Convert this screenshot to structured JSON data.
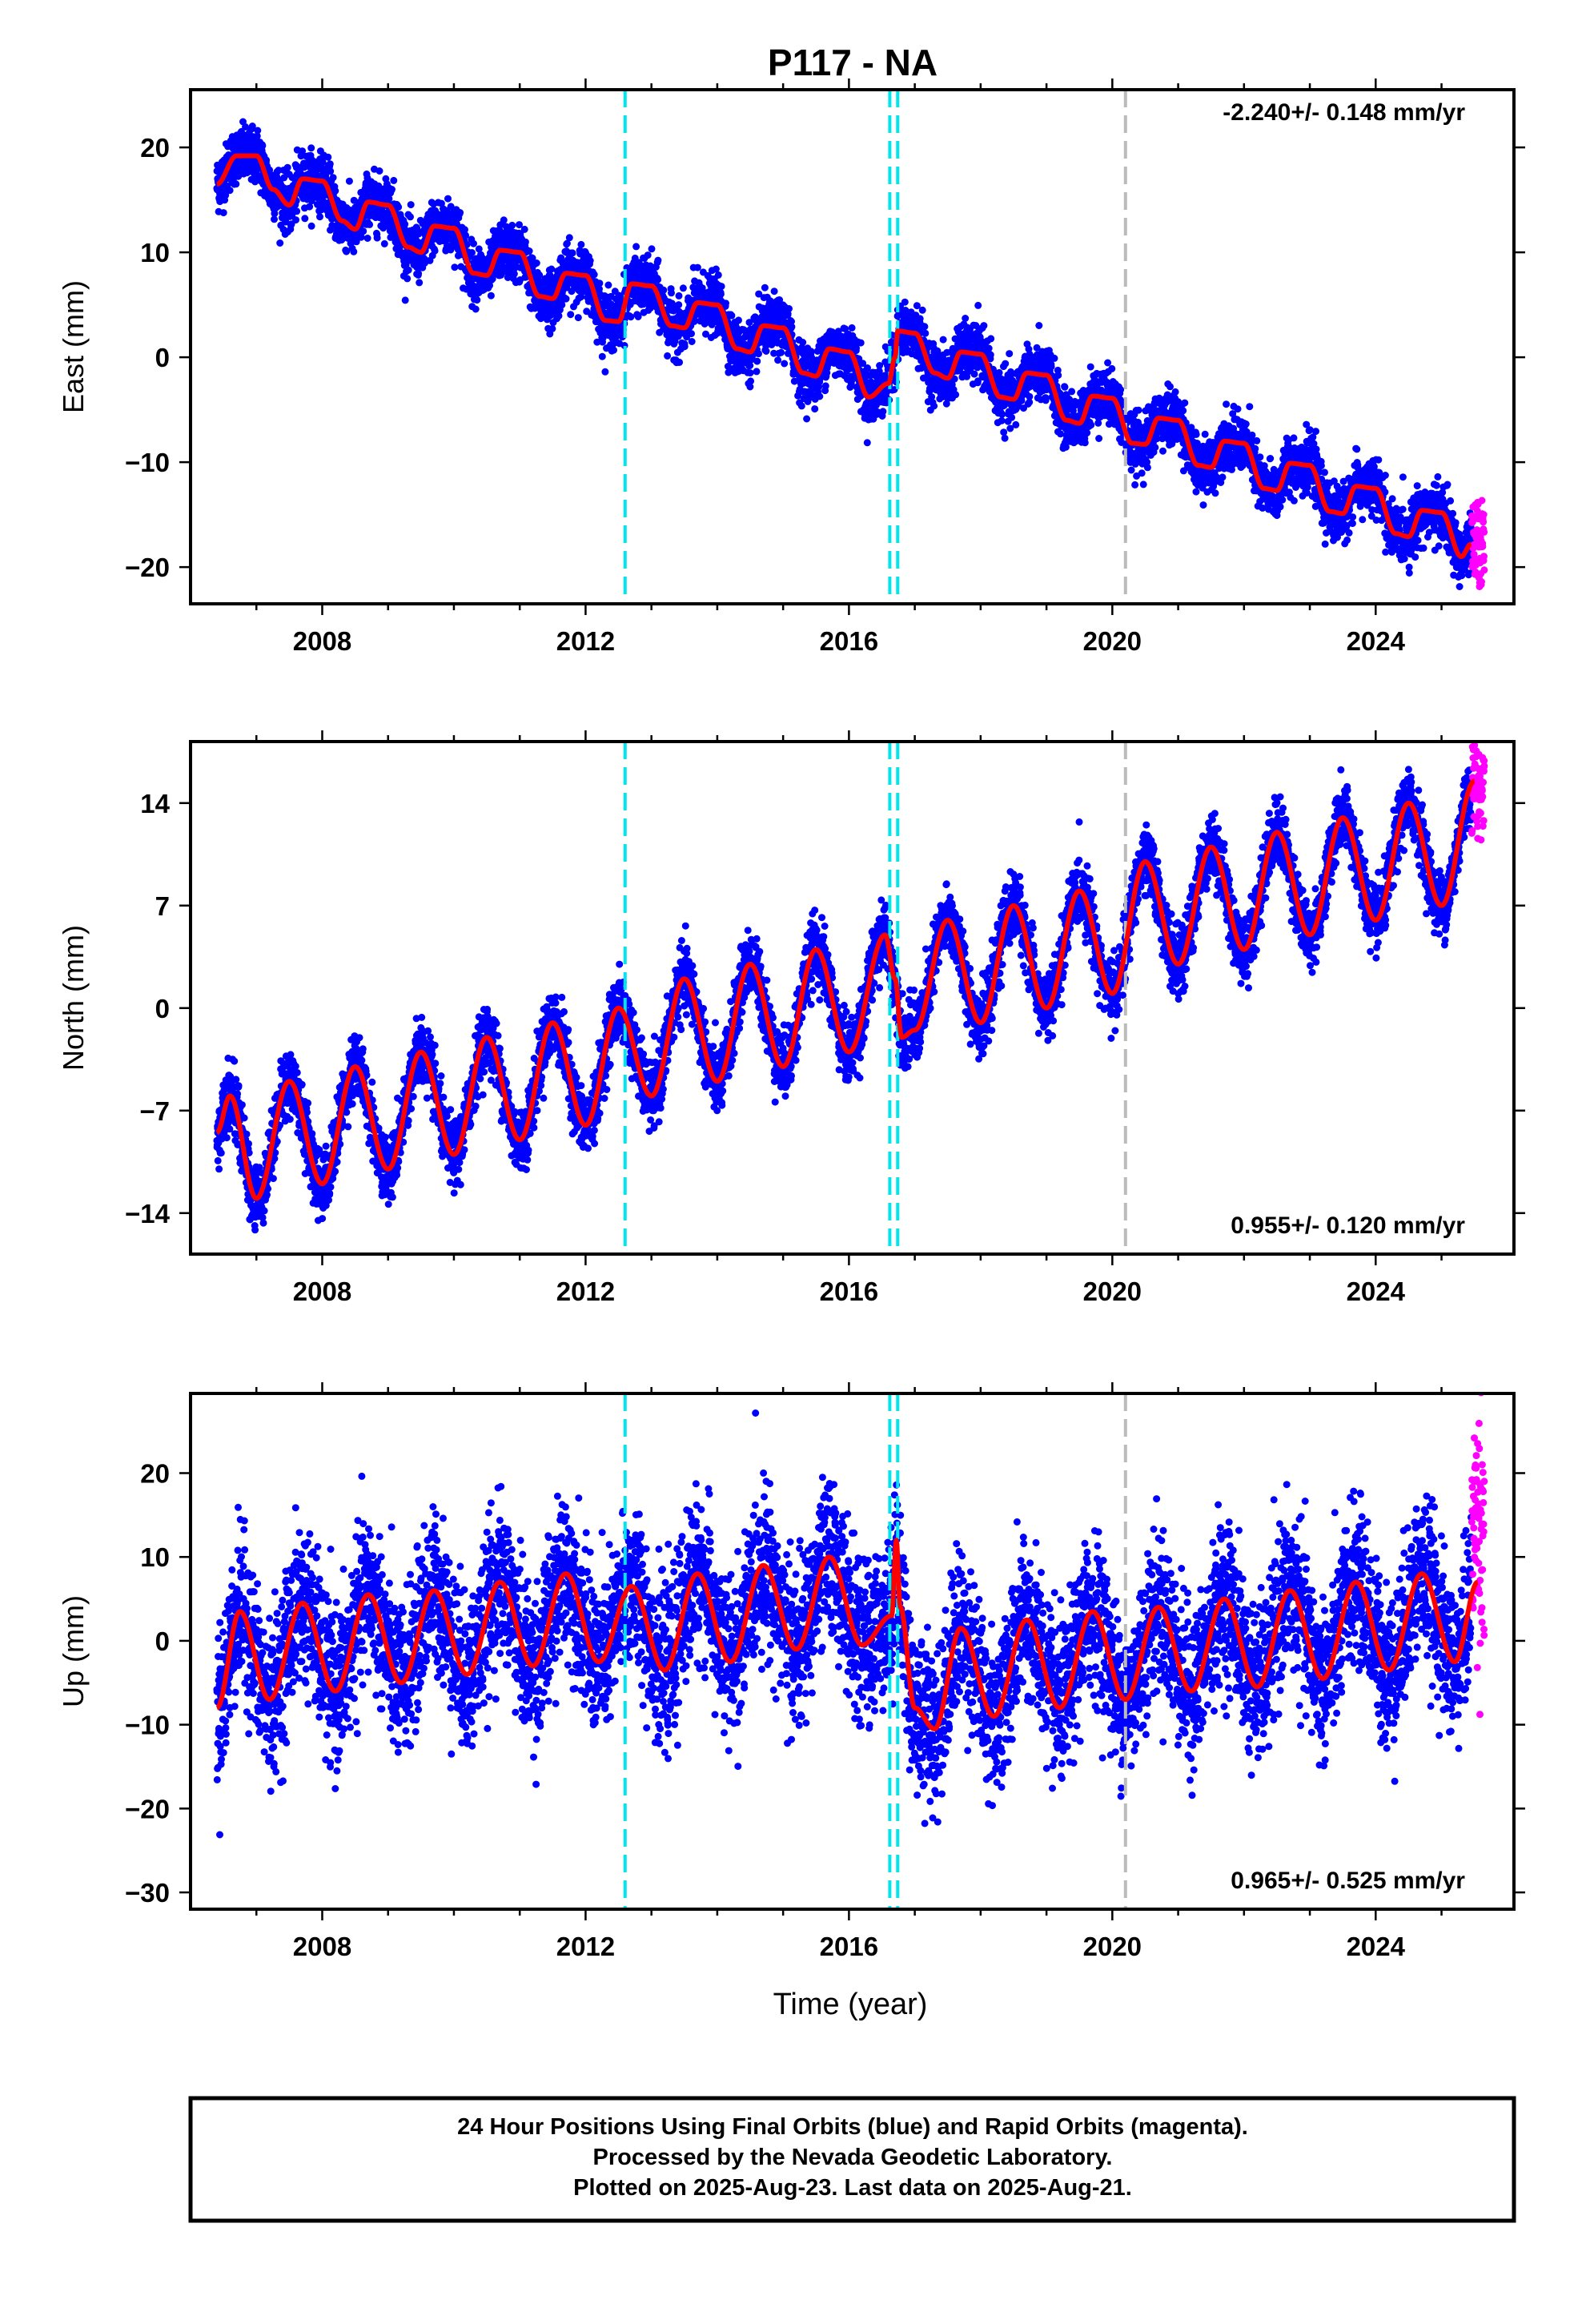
{
  "title": "P117 - NA",
  "xlabel": "Time (year)",
  "footer": [
    "24 Hour Positions Using Final Orbits (blue) and Rapid Orbits (magenta).",
    "Processed by the Nevada Geodetic Laboratory.",
    "Plotted on 2025-Aug-23. Last data on 2025-Aug-21."
  ],
  "colors": {
    "final_orbits": "#0000ff",
    "rapid_orbits": "#ff00ff",
    "model": "#ff0000",
    "equipment_change": "#00e5ee",
    "other_event": "#bbbbbb"
  },
  "chart_data": [
    {
      "type": "scatter",
      "ylabel": "East (mm)",
      "rate": "-2.240+/- 0.148 mm/yr",
      "xlim": [
        2006.0,
        2026.1
      ],
      "ylim": [
        -23.5,
        25.5
      ],
      "xticks": [
        2008,
        2012,
        2016,
        2020,
        2024
      ],
      "yticks": [
        20,
        10,
        0,
        -10,
        -20
      ],
      "cyan_lines": [
        2012.6,
        2016.62,
        2016.74
      ],
      "gray_lines": [
        2020.2
      ],
      "series": [
        {
          "role": "model",
          "x": [
            2006.4,
            2006.7,
            2007.0,
            2007.25,
            2007.5,
            2007.7,
            2008.0,
            2008.3,
            2008.5,
            2008.7,
            2009.0,
            2009.3,
            2009.5,
            2009.7,
            2010.0,
            2010.3,
            2010.5,
            2010.7,
            2011.0,
            2011.3,
            2011.5,
            2011.7,
            2012.0,
            2012.3,
            2012.5,
            2012.7,
            2013.0,
            2013.3,
            2013.5,
            2013.7,
            2014.0,
            2014.3,
            2014.5,
            2014.7,
            2015.0,
            2015.3,
            2015.5,
            2015.7,
            2016.0,
            2016.3,
            2016.6,
            2016.7,
            2016.74,
            2017.0,
            2017.3,
            2017.5,
            2017.7,
            2018.0,
            2018.3,
            2018.5,
            2018.7,
            2019.0,
            2019.3,
            2019.5,
            2019.7,
            2020.0,
            2020.3,
            2020.5,
            2020.7,
            2021.0,
            2021.3,
            2021.5,
            2021.7,
            2022.0,
            2022.3,
            2022.5,
            2022.7,
            2023.0,
            2023.3,
            2023.5,
            2023.7,
            2024.0,
            2024.3,
            2024.5,
            2024.7,
            2025.0,
            2025.3,
            2025.45
          ],
          "values": [
            16.5,
            19.2,
            19.2,
            16.0,
            14.5,
            17.0,
            16.8,
            13.0,
            12.2,
            14.8,
            14.5,
            10.5,
            10.0,
            12.5,
            12.3,
            8.0,
            7.8,
            10.2,
            10.0,
            5.8,
            5.6,
            8.0,
            7.8,
            3.5,
            3.4,
            7.0,
            6.8,
            3.0,
            2.8,
            5.2,
            5.0,
            0.8,
            0.5,
            3.0,
            2.8,
            -1.5,
            -1.8,
            0.8,
            0.5,
            -3.8,
            -2.5,
            0.0,
            2.5,
            2.3,
            -1.5,
            -2.0,
            0.5,
            0.3,
            -3.8,
            -4.0,
            -1.5,
            -1.7,
            -6.0,
            -6.3,
            -3.7,
            -3.9,
            -8.2,
            -8.3,
            -5.8,
            -6.0,
            -10.3,
            -10.5,
            -8.0,
            -8.2,
            -12.5,
            -12.7,
            -10.1,
            -10.3,
            -14.7,
            -14.9,
            -12.3,
            -12.5,
            -16.8,
            -17.1,
            -14.6,
            -14.8,
            -19.0,
            -17.8
          ]
        }
      ]
    },
    {
      "type": "scatter",
      "ylabel": "North (mm)",
      "rate": "0.955+/- 0.120 mm/yr",
      "xlim": [
        2006.0,
        2026.1
      ],
      "ylim": [
        -16.8,
        18.2
      ],
      "xticks": [
        2008,
        2012,
        2016,
        2020,
        2024
      ],
      "yticks": [
        14,
        7,
        0,
        -7,
        -14
      ],
      "cyan_lines": [
        2012.6,
        2016.62,
        2016.74
      ],
      "gray_lines": [
        2020.2
      ],
      "series": [
        {
          "role": "model",
          "x": [
            2006.4,
            2006.6,
            2007.0,
            2007.5,
            2008.0,
            2008.5,
            2009.0,
            2009.5,
            2010.0,
            2010.5,
            2011.0,
            2011.5,
            2012.0,
            2012.5,
            2013.0,
            2013.5,
            2014.0,
            2014.5,
            2015.0,
            2015.5,
            2016.0,
            2016.55,
            2016.7,
            2016.8,
            2017.0,
            2017.5,
            2018.0,
            2018.5,
            2019.0,
            2019.5,
            2020.0,
            2020.5,
            2021.0,
            2021.5,
            2022.0,
            2022.5,
            2023.0,
            2023.5,
            2024.0,
            2024.5,
            2025.0,
            2025.5
          ],
          "values": [
            -8.5,
            -6.0,
            -13.0,
            -5.0,
            -12.0,
            -4.0,
            -11.0,
            -3.0,
            -10.0,
            -2.0,
            -9.0,
            -1.0,
            -8.0,
            0.0,
            -6.0,
            2.0,
            -5.0,
            3.0,
            -4.0,
            4.0,
            -3.0,
            5.0,
            2.0,
            -2.0,
            -1.5,
            6.0,
            -1.0,
            7.0,
            0.0,
            8.0,
            1.0,
            10.0,
            3.0,
            11.0,
            4.0,
            12.0,
            5.0,
            13.0,
            6.0,
            14.0,
            7.0,
            15.5
          ]
        }
      ]
    },
    {
      "type": "scatter",
      "ylabel": "Up (mm)",
      "rate": "0.965+/- 0.525 mm/yr",
      "xlim": [
        2006.0,
        2026.1
      ],
      "ylim": [
        -32.0,
        29.5
      ],
      "xticks": [
        2008,
        2012,
        2016,
        2020,
        2024
      ],
      "yticks": [
        20,
        10,
        0,
        -10,
        -20,
        -30
      ],
      "cyan_lines": [
        2012.6,
        2016.62,
        2016.74
      ],
      "gray_lines": [
        2020.2
      ],
      "series": [
        {
          "role": "model",
          "x": [
            2006.4,
            2006.75,
            2007.2,
            2007.7,
            2008.2,
            2008.7,
            2009.2,
            2009.7,
            2010.2,
            2010.7,
            2011.2,
            2011.7,
            2012.2,
            2012.7,
            2013.2,
            2013.7,
            2014.2,
            2014.7,
            2015.2,
            2015.7,
            2016.2,
            2016.65,
            2016.72,
            2016.78,
            2017.0,
            2017.3,
            2017.7,
            2018.2,
            2018.7,
            2019.2,
            2019.7,
            2020.2,
            2020.7,
            2021.2,
            2021.7,
            2022.2,
            2022.7,
            2023.2,
            2023.7,
            2024.2,
            2024.7,
            2025.2,
            2025.55
          ],
          "values": [
            -8.0,
            3.5,
            -7.0,
            4.5,
            -6.0,
            5.5,
            -5.0,
            6.0,
            -4.0,
            7.0,
            -3.0,
            8.0,
            -2.5,
            6.5,
            -3.5,
            8.0,
            -2.5,
            9.0,
            -1.0,
            10.0,
            -0.5,
            3.0,
            12.0,
            4.0,
            -8.0,
            -10.5,
            1.5,
            -9.0,
            2.5,
            -8.0,
            3.5,
            -7.0,
            4.0,
            -6.0,
            5.0,
            -5.5,
            6.0,
            -4.5,
            7.0,
            -3.5,
            8.0,
            -2.5,
            7.0
          ]
        }
      ]
    }
  ]
}
